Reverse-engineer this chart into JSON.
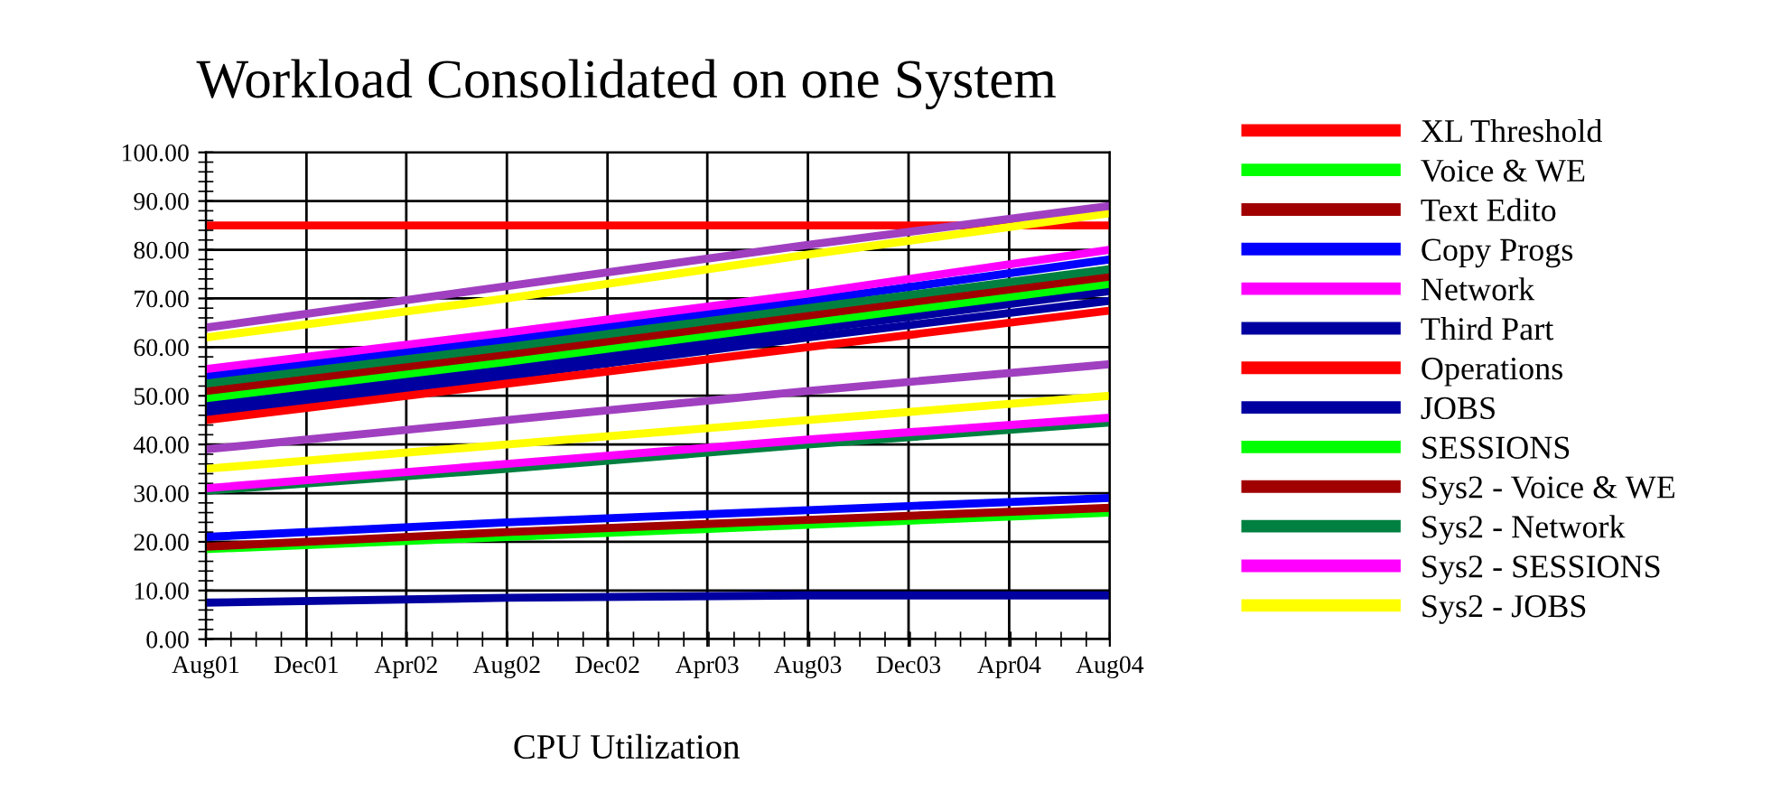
{
  "chart_data": {
    "type": "line",
    "title": "Workload Consolidated on one System",
    "annotations": [
      "CPU Utilization"
    ],
    "x": [
      "2001-08",
      "2002-08",
      "2003-08",
      "2004-08"
    ],
    "xlim": [
      "2001-08",
      "2004-08"
    ],
    "xticks": [
      {
        "value": "2001-08",
        "label": "Aug01"
      },
      {
        "value": "2001-12",
        "label": "Dec01"
      },
      {
        "value": "2002-04",
        "label": "Apr02"
      },
      {
        "value": "2002-08",
        "label": "Aug02"
      },
      {
        "value": "2002-12",
        "label": "Dec02"
      },
      {
        "value": "2003-04",
        "label": "Apr03"
      },
      {
        "value": "2003-08",
        "label": "Aug03"
      },
      {
        "value": "2003-12",
        "label": "Dec03"
      },
      {
        "value": "2004-04",
        "label": "Apr04"
      },
      {
        "value": "2004-08",
        "label": "Aug04"
      }
    ],
    "ylim": [
      0,
      100
    ],
    "yticks": [
      {
        "value": 0,
        "label": "0.00"
      },
      {
        "value": 10,
        "label": "10.00"
      },
      {
        "value": 20,
        "label": "20.00"
      },
      {
        "value": 30,
        "label": "30.00"
      },
      {
        "value": 40,
        "label": "40.00"
      },
      {
        "value": 50,
        "label": "50.00"
      },
      {
        "value": 60,
        "label": "60.00"
      },
      {
        "value": 70,
        "label": "70.00"
      },
      {
        "value": 80,
        "label": "80.00"
      },
      {
        "value": 90,
        "label": "90.00"
      },
      {
        "value": 100,
        "label": "100.00"
      }
    ],
    "grid": true,
    "legend": "right",
    "marker": "none",
    "line_style": "solid",
    "series": [
      {
        "name": "XL Threshold",
        "color": "#ff0000",
        "values": [
          85,
          85,
          85,
          85
        ]
      },
      {
        "color": "#0000a0",
        "values": [
          7.5,
          8.5,
          9,
          9
        ]
      },
      {
        "name": "Voice & WE",
        "color": "#00ff00",
        "values": [
          18.5,
          21,
          23.5,
          26
        ]
      },
      {
        "name": "Text Edito",
        "color": "#a00000",
        "values": [
          19,
          22,
          24.5,
          27
        ]
      },
      {
        "name": "Copy Progs",
        "color": "#0000ff",
        "values": [
          21,
          24,
          26.5,
          29
        ]
      },
      {
        "color": "#008040",
        "values": [
          30.5,
          35,
          40,
          44.5
        ]
      },
      {
        "name": "Network",
        "color": "#ff00ff",
        "values": [
          31,
          36,
          41,
          45.5
        ]
      },
      {
        "color": "#ffff00",
        "values": [
          35,
          40,
          45,
          50
        ]
      },
      {
        "color": "#a040c0",
        "values": [
          39,
          45,
          51,
          56.5
        ]
      },
      {
        "name": "Third Part",
        "color": "#0000a0",
        "values": [
          46.5,
          54,
          62,
          69.5
        ]
      },
      {
        "name": "Operations",
        "color": "#ff0000",
        "values": [
          45,
          52.5,
          60,
          67.5
        ]
      },
      {
        "name": "JOBS",
        "color": "#0000a0",
        "values": [
          48,
          55.5,
          63.5,
          71.5
        ]
      },
      {
        "name": "SESSIONS",
        "color": "#00ff00",
        "values": [
          49.5,
          57,
          65,
          73
        ]
      },
      {
        "name": "Sys2 - Voice & WE",
        "color": "#a00000",
        "values": [
          51,
          58.5,
          66.5,
          74.5
        ]
      },
      {
        "color": "#0000ff",
        "values": [
          54,
          61.5,
          69.5,
          78
        ]
      },
      {
        "name": "Sys2 - Network",
        "color": "#008040",
        "values": [
          52.5,
          60,
          68,
          76
        ]
      },
      {
        "name": "Sys2 - SESSIONS",
        "color": "#ff00ff",
        "values": [
          55.5,
          63,
          71,
          80
        ]
      },
      {
        "name": "Sys2 - JOBS",
        "color": "#ffff00",
        "values": [
          62,
          70,
          79,
          87.5
        ]
      },
      {
        "color": "#a040c0",
        "values": [
          64,
          72.5,
          81,
          89
        ]
      }
    ]
  }
}
